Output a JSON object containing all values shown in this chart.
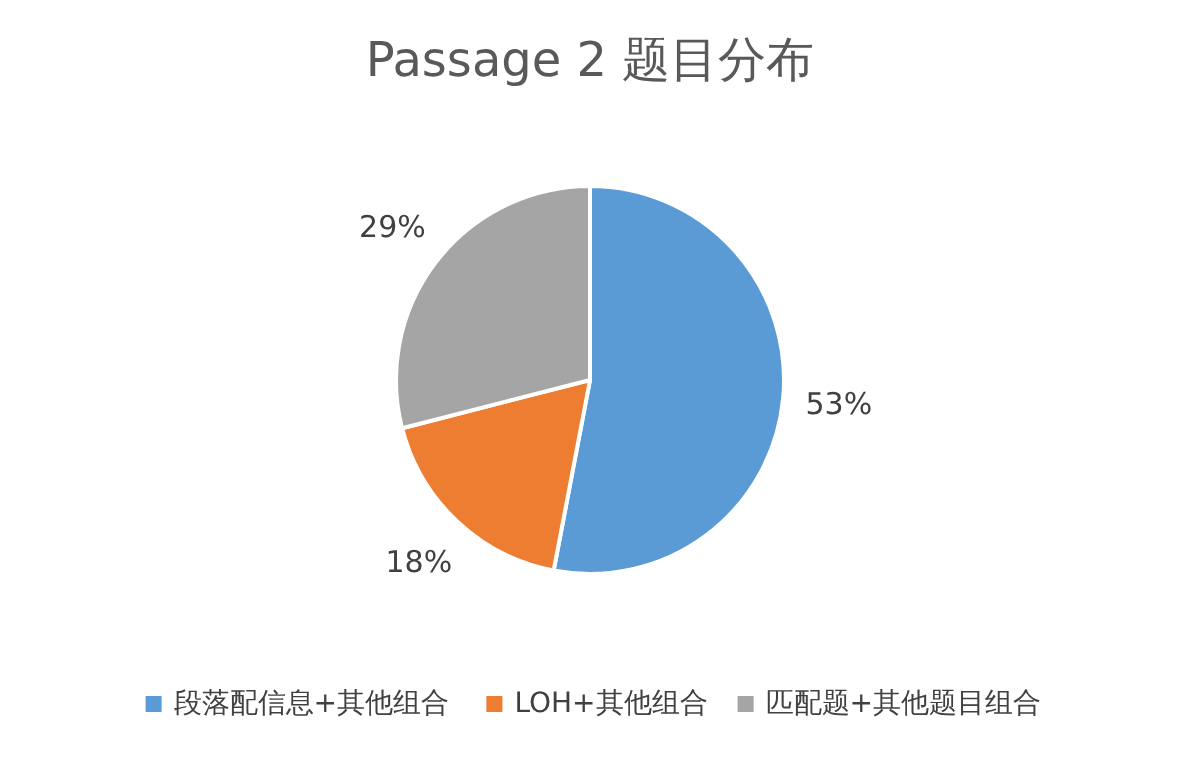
{
  "chart_data": {
    "type": "pie",
    "title": "Passage 2 题目分布",
    "categories": [
      "段落配信息+其他组合",
      "LOH+其他组合",
      "匹配题+其他题目组合"
    ],
    "values": [
      53,
      18,
      29
    ],
    "colors": [
      "#5b9bd5",
      "#ed7d31",
      "#a5a5a5"
    ],
    "value_labels": [
      "53%",
      "18%",
      "29%"
    ],
    "legend": "bottom"
  }
}
